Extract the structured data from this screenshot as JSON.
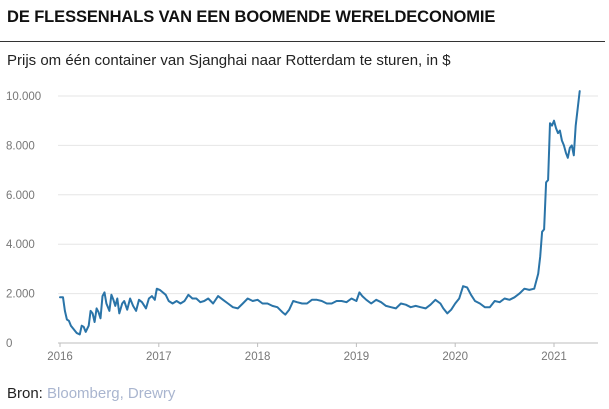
{
  "title": "DE FLESSENHALS VAN EEN BOOMENDE WERELDECONOMIE",
  "subtitle": "Prijs om één container van Sjanghai naar Rotterdam te sturen, in $",
  "source": {
    "label": "Bron:",
    "text": "Bloomberg, Drewry"
  },
  "colors": {
    "line": "#2a74a8",
    "grid": "#e6e6e6",
    "link": "#a9b5cf"
  },
  "chart_data": {
    "type": "line",
    "title": "DE FLESSENHALS VAN EEN BOOMENDE WERELDECONOMIE",
    "subtitle": "Prijs om één container van Sjanghai naar Rotterdam te sturen, in $",
    "xlabel": "",
    "ylabel": "",
    "ylim": [
      0,
      10000
    ],
    "yticks": [
      0,
      2000,
      4000,
      6000,
      8000,
      10000
    ],
    "ytick_labels": [
      "0",
      "2.000",
      "4.000",
      "6.000",
      "8.000",
      "10.000"
    ],
    "xticks": [
      2016,
      2017,
      2018,
      2019,
      2020,
      2021
    ],
    "xtick_labels": [
      "2016",
      "2017",
      "2018",
      "2019",
      "2020",
      "2021"
    ],
    "xlim": [
      2016,
      2021.45
    ],
    "grid": "horizontal",
    "series": [
      {
        "values": [
          [
            2016.0,
            1850
          ],
          [
            2016.03,
            1850
          ],
          [
            2016.05,
            1300
          ],
          [
            2016.07,
            950
          ],
          [
            2016.09,
            900
          ],
          [
            2016.11,
            700
          ],
          [
            2016.14,
            550
          ],
          [
            2016.17,
            400
          ],
          [
            2016.2,
            350
          ],
          [
            2016.22,
            700
          ],
          [
            2016.24,
            650
          ],
          [
            2016.26,
            450
          ],
          [
            2016.29,
            700
          ],
          [
            2016.31,
            1300
          ],
          [
            2016.33,
            1200
          ],
          [
            2016.35,
            850
          ],
          [
            2016.37,
            1400
          ],
          [
            2016.39,
            1250
          ],
          [
            2016.41,
            1000
          ],
          [
            2016.43,
            1900
          ],
          [
            2016.45,
            2050
          ],
          [
            2016.47,
            1600
          ],
          [
            2016.5,
            1300
          ],
          [
            2016.52,
            1950
          ],
          [
            2016.54,
            1750
          ],
          [
            2016.56,
            1500
          ],
          [
            2016.58,
            1800
          ],
          [
            2016.6,
            1200
          ],
          [
            2016.63,
            1600
          ],
          [
            2016.65,
            1700
          ],
          [
            2016.68,
            1350
          ],
          [
            2016.71,
            1800
          ],
          [
            2016.74,
            1500
          ],
          [
            2016.77,
            1300
          ],
          [
            2016.8,
            1750
          ],
          [
            2016.83,
            1650
          ],
          [
            2016.87,
            1400
          ],
          [
            2016.9,
            1800
          ],
          [
            2016.93,
            1900
          ],
          [
            2016.96,
            1750
          ],
          [
            2016.98,
            2200
          ],
          [
            2017.01,
            2150
          ],
          [
            2017.04,
            2050
          ],
          [
            2017.07,
            1950
          ],
          [
            2017.1,
            1700
          ],
          [
            2017.14,
            1600
          ],
          [
            2017.18,
            1700
          ],
          [
            2017.22,
            1600
          ],
          [
            2017.26,
            1700
          ],
          [
            2017.3,
            1950
          ],
          [
            2017.34,
            1800
          ],
          [
            2017.38,
            1800
          ],
          [
            2017.42,
            1650
          ],
          [
            2017.46,
            1700
          ],
          [
            2017.5,
            1800
          ],
          [
            2017.55,
            1600
          ],
          [
            2017.6,
            1900
          ],
          [
            2017.65,
            1750
          ],
          [
            2017.7,
            1600
          ],
          [
            2017.75,
            1450
          ],
          [
            2017.8,
            1400
          ],
          [
            2017.85,
            1600
          ],
          [
            2017.9,
            1800
          ],
          [
            2017.95,
            1700
          ],
          [
            2018.0,
            1750
          ],
          [
            2018.05,
            1600
          ],
          [
            2018.1,
            1600
          ],
          [
            2018.15,
            1500
          ],
          [
            2018.2,
            1450
          ],
          [
            2018.25,
            1250
          ],
          [
            2018.28,
            1150
          ],
          [
            2018.32,
            1350
          ],
          [
            2018.36,
            1700
          ],
          [
            2018.4,
            1650
          ],
          [
            2018.45,
            1600
          ],
          [
            2018.5,
            1600
          ],
          [
            2018.55,
            1750
          ],
          [
            2018.6,
            1750
          ],
          [
            2018.65,
            1700
          ],
          [
            2018.7,
            1600
          ],
          [
            2018.75,
            1600
          ],
          [
            2018.8,
            1700
          ],
          [
            2018.85,
            1700
          ],
          [
            2018.9,
            1650
          ],
          [
            2018.95,
            1800
          ],
          [
            2019.0,
            1700
          ],
          [
            2019.03,
            2050
          ],
          [
            2019.06,
            1900
          ],
          [
            2019.1,
            1750
          ],
          [
            2019.15,
            1600
          ],
          [
            2019.2,
            1750
          ],
          [
            2019.25,
            1650
          ],
          [
            2019.3,
            1500
          ],
          [
            2019.35,
            1450
          ],
          [
            2019.4,
            1400
          ],
          [
            2019.45,
            1600
          ],
          [
            2019.5,
            1550
          ],
          [
            2019.55,
            1450
          ],
          [
            2019.6,
            1500
          ],
          [
            2019.65,
            1450
          ],
          [
            2019.7,
            1400
          ],
          [
            2019.75,
            1550
          ],
          [
            2019.8,
            1750
          ],
          [
            2019.85,
            1600
          ],
          [
            2019.88,
            1400
          ],
          [
            2019.92,
            1200
          ],
          [
            2019.96,
            1350
          ],
          [
            2020.0,
            1600
          ],
          [
            2020.04,
            1800
          ],
          [
            2020.08,
            2300
          ],
          [
            2020.12,
            2250
          ],
          [
            2020.16,
            1950
          ],
          [
            2020.2,
            1700
          ],
          [
            2020.25,
            1600
          ],
          [
            2020.3,
            1450
          ],
          [
            2020.35,
            1450
          ],
          [
            2020.4,
            1700
          ],
          [
            2020.45,
            1650
          ],
          [
            2020.5,
            1800
          ],
          [
            2020.55,
            1750
          ],
          [
            2020.6,
            1850
          ],
          [
            2020.65,
            2000
          ],
          [
            2020.7,
            2200
          ],
          [
            2020.75,
            2150
          ],
          [
            2020.8,
            2200
          ],
          [
            2020.84,
            2800
          ],
          [
            2020.86,
            3500
          ],
          [
            2020.88,
            4500
          ],
          [
            2020.9,
            4600
          ],
          [
            2020.92,
            6500
          ],
          [
            2020.94,
            6600
          ],
          [
            2020.96,
            8900
          ],
          [
            2020.98,
            8800
          ],
          [
            2021.0,
            9000
          ],
          [
            2021.02,
            8700
          ],
          [
            2021.04,
            8500
          ],
          [
            2021.06,
            8600
          ],
          [
            2021.08,
            8200
          ],
          [
            2021.1,
            8000
          ],
          [
            2021.12,
            7700
          ],
          [
            2021.14,
            7500
          ],
          [
            2021.16,
            7900
          ],
          [
            2021.18,
            8000
          ],
          [
            2021.2,
            7600
          ],
          [
            2021.22,
            8800
          ],
          [
            2021.24,
            9500
          ],
          [
            2021.26,
            10200
          ]
        ]
      }
    ]
  }
}
